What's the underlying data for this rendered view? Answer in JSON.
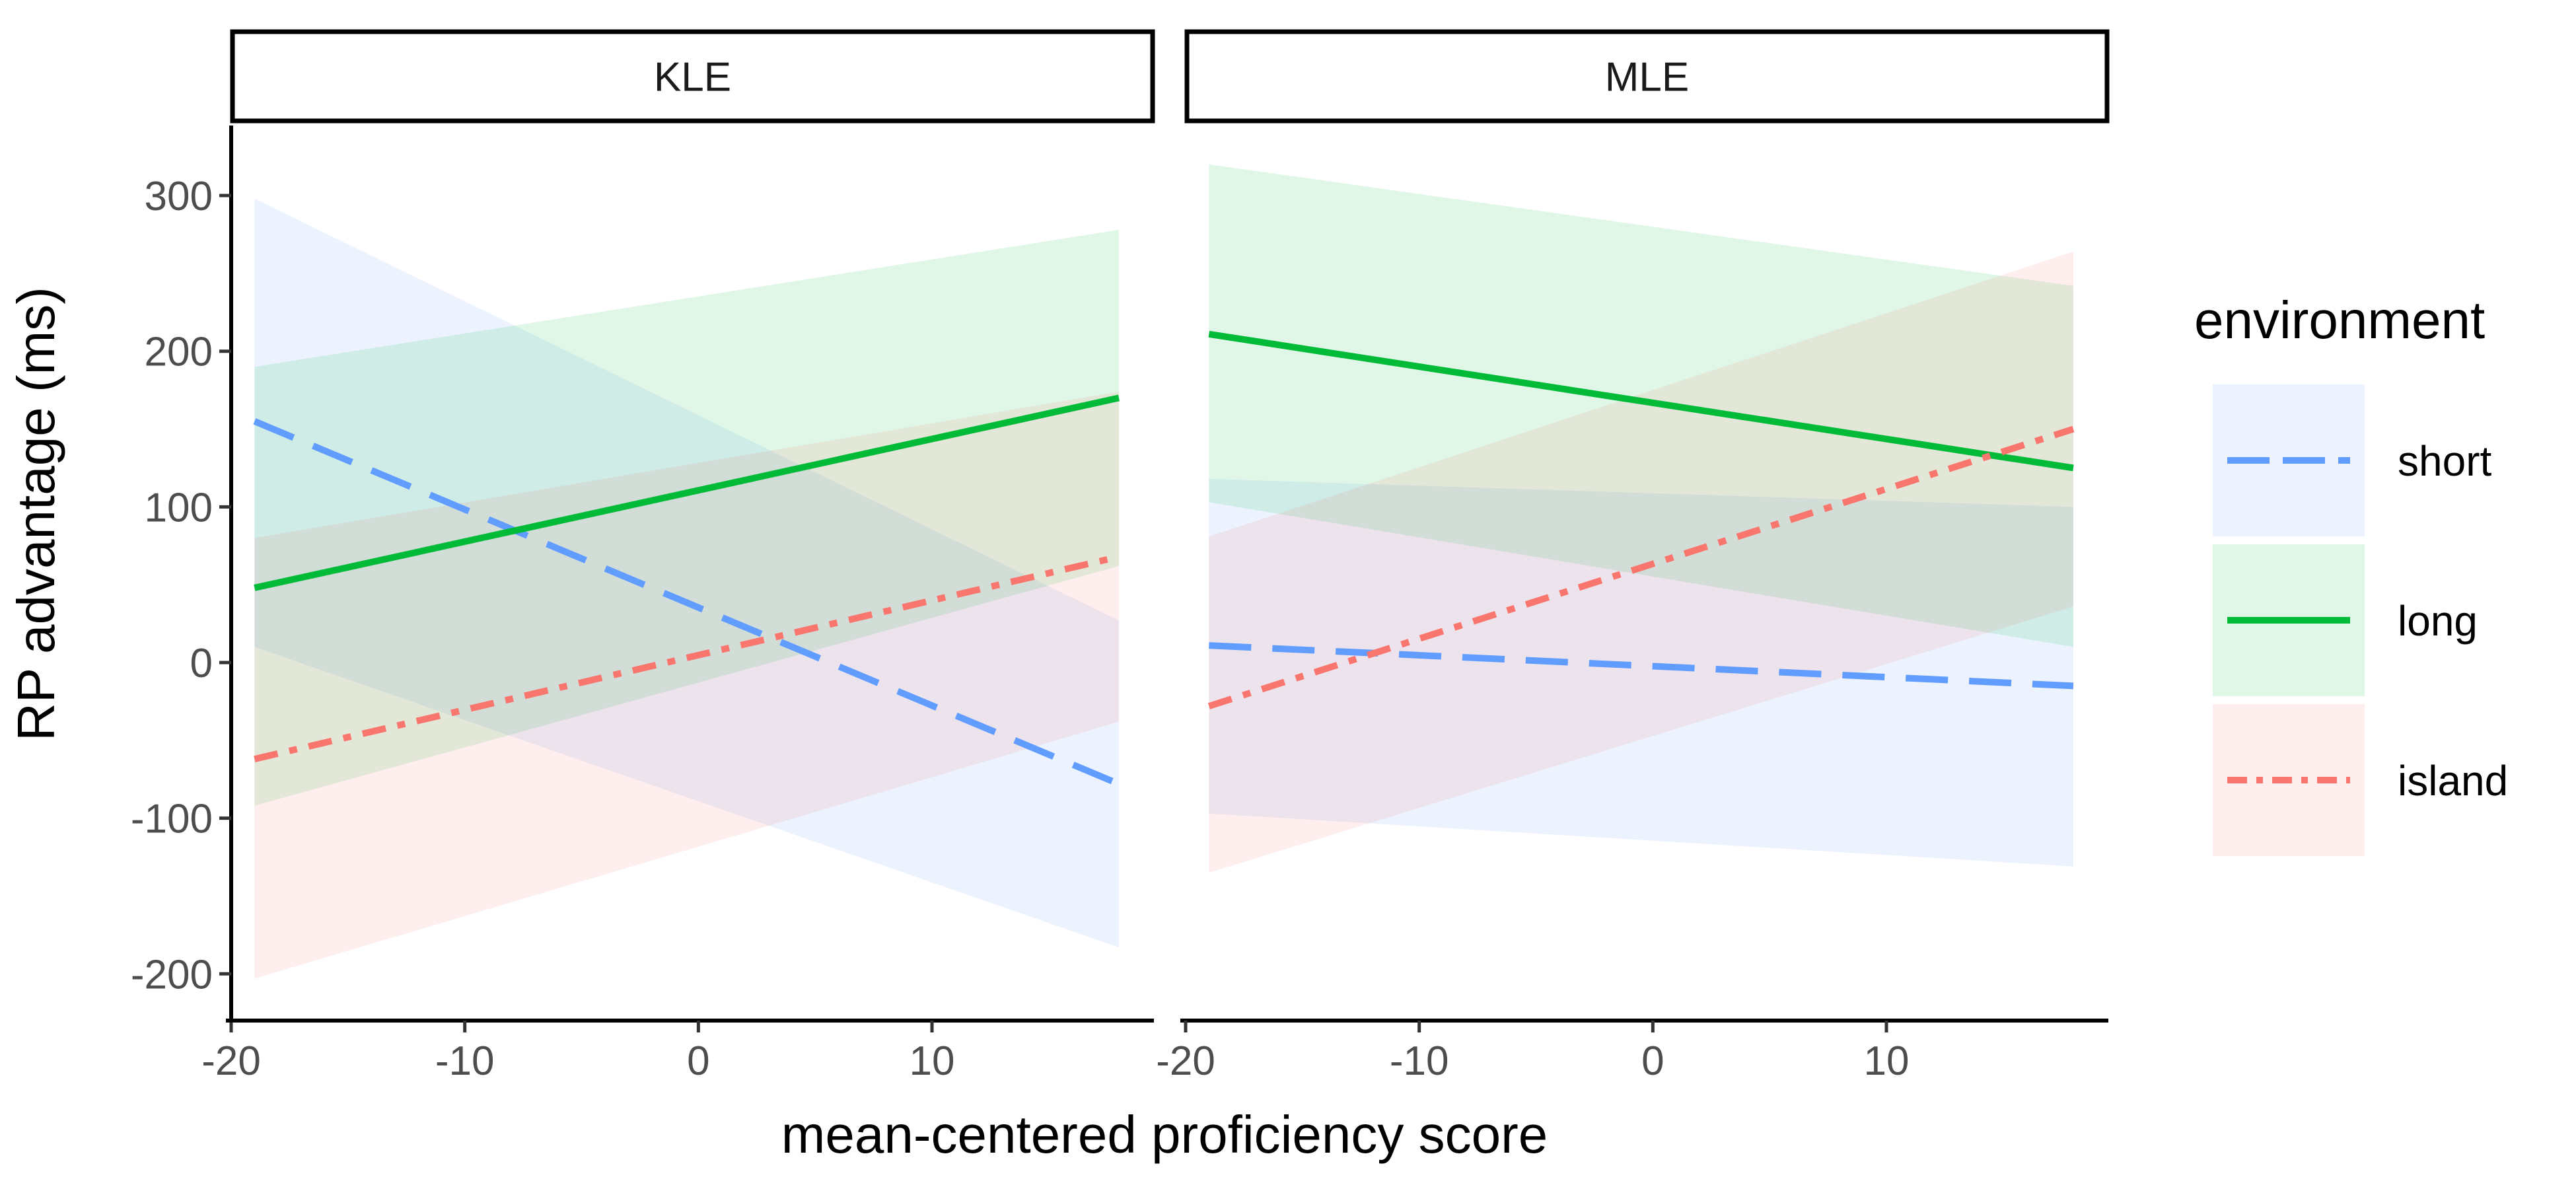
{
  "chart_data": {
    "type": "line",
    "xlabel": "mean-centered proficiency score",
    "ylabel": "RP advantage (ms)",
    "xlim": [
      -20,
      19.5
    ],
    "ylim": [
      -230,
      345
    ],
    "x_ticks": [
      "-20",
      "-10",
      "0",
      "10"
    ],
    "y_ticks": [
      "300",
      "200",
      "100",
      "0",
      "-100",
      "-200"
    ],
    "legend": {
      "title": "environment",
      "placement": "right",
      "items": [
        "short",
        "long",
        "island"
      ]
    },
    "colors": {
      "short": "#619CFF",
      "long": "#00BA38",
      "island": "#F8766D"
    },
    "panels": [
      {
        "label": "KLE",
        "series": [
          {
            "name": "short",
            "x": [
              -19,
              18
            ],
            "y": [
              155,
              -78
            ],
            "lower": [
              10,
              -183
            ],
            "upper": [
              298,
              27
            ]
          },
          {
            "name": "long",
            "x": [
              -19,
              18
            ],
            "y": [
              48,
              170
            ],
            "lower": [
              -92,
              62
            ],
            "upper": [
              190,
              278
            ]
          },
          {
            "name": "island",
            "x": [
              -19,
              18
            ],
            "y": [
              -62,
              68
            ],
            "lower": [
              -203,
              -38
            ],
            "upper": [
              80,
              174
            ]
          }
        ]
      },
      {
        "label": "MLE",
        "series": [
          {
            "name": "short",
            "x": [
              -19,
              18
            ],
            "y": [
              11,
              -15
            ],
            "lower": [
              -97,
              -131
            ],
            "upper": [
              118,
              100
            ]
          },
          {
            "name": "long",
            "x": [
              -19,
              18
            ],
            "y": [
              211,
              125
            ],
            "lower": [
              103,
              10
            ],
            "upper": [
              320,
              242
            ]
          },
          {
            "name": "island",
            "x": [
              -19,
              18
            ],
            "y": [
              -28,
              150
            ],
            "lower": [
              -135,
              36
            ],
            "upper": [
              81,
              264
            ]
          }
        ]
      }
    ]
  }
}
